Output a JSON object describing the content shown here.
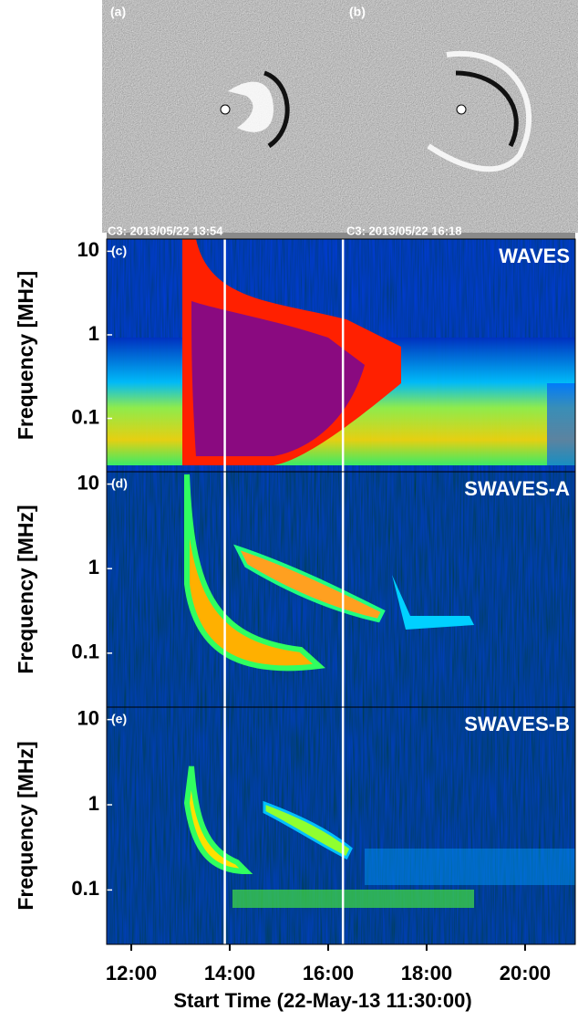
{
  "images": [
    {
      "label": "(a)",
      "caption": "C3: 2013/05/22 13:54"
    },
    {
      "label": "(b)",
      "caption": "C3: 2013/05/22 16:18"
    }
  ],
  "chart_data": [
    {
      "type": "spectrogram",
      "panel": "(c)",
      "title": "WAVES",
      "ylabel": "Frequency [MHz]",
      "log_y": true,
      "ylim": [
        0.023,
        14
      ],
      "yticks": [
        10,
        1,
        0.1
      ],
      "xlim": [
        11.5,
        21.02
      ],
      "markers": [
        13.9,
        16.3
      ]
    },
    {
      "type": "spectrogram",
      "panel": "(d)",
      "title": "SWAVES-A",
      "ylabel": "Frequency [MHz]",
      "log_y": true,
      "ylim": [
        0.023,
        14
      ],
      "yticks": [
        10,
        1,
        0.1
      ],
      "xlim": [
        11.5,
        21.02
      ],
      "markers": [
        13.9,
        16.3
      ]
    },
    {
      "type": "spectrogram",
      "panel": "(e)",
      "title": "SWAVES-B",
      "ylabel": "Frequency [MHz]",
      "log_y": true,
      "ylim": [
        0.023,
        14
      ],
      "yticks": [
        10,
        1,
        0.1
      ],
      "xlim": [
        11.5,
        21.02
      ],
      "markers": [
        13.9,
        16.3
      ],
      "xlabel": "Start Time (22-May-13 11:30:00)",
      "xticks": [
        {
          "value": 12,
          "label": "12:00"
        },
        {
          "value": 14,
          "label": "14:00"
        },
        {
          "value": 16,
          "label": "16:00"
        },
        {
          "value": 18,
          "label": "18:00"
        },
        {
          "value": 20,
          "label": "20:00"
        }
      ]
    }
  ]
}
